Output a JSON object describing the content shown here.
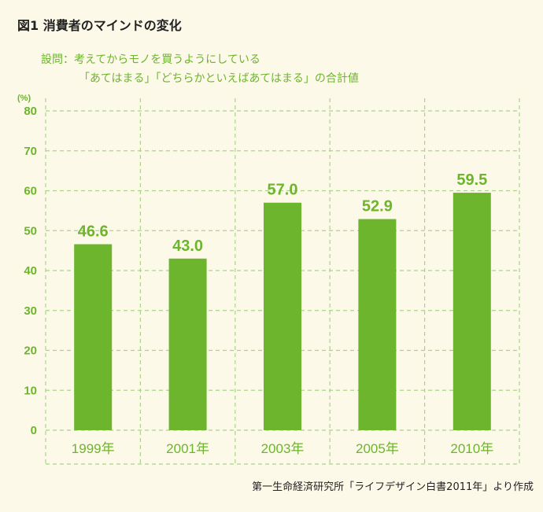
{
  "title": "図1 消費者のマインドの変化",
  "question_line1": "設問：考えてからモノを買うようにしている",
  "question_line2": "「あてはまる」「どちらかといえばあてはまる」の合計値",
  "source": "第一生命経済研究所「ライフデザイン白書2011年」より作成",
  "colors": {
    "bar": "#6cb52d",
    "grid": "#a9d58a",
    "background": "#fdf9e8"
  },
  "chart_data": {
    "type": "bar",
    "categories": [
      "1999年",
      "2001年",
      "2003年",
      "2005年",
      "2010年"
    ],
    "values": [
      46.6,
      43.0,
      57.0,
      52.9,
      59.5
    ],
    "data_labels": [
      "46.6",
      "43.0",
      "57.0",
      "52.9",
      "59.5"
    ],
    "yunit": "(%)",
    "yticks": [
      "0",
      "10",
      "20",
      "30",
      "40",
      "50",
      "60",
      "70",
      "80"
    ],
    "ylim": [
      0,
      80
    ],
    "grid": true,
    "legend": "none"
  }
}
